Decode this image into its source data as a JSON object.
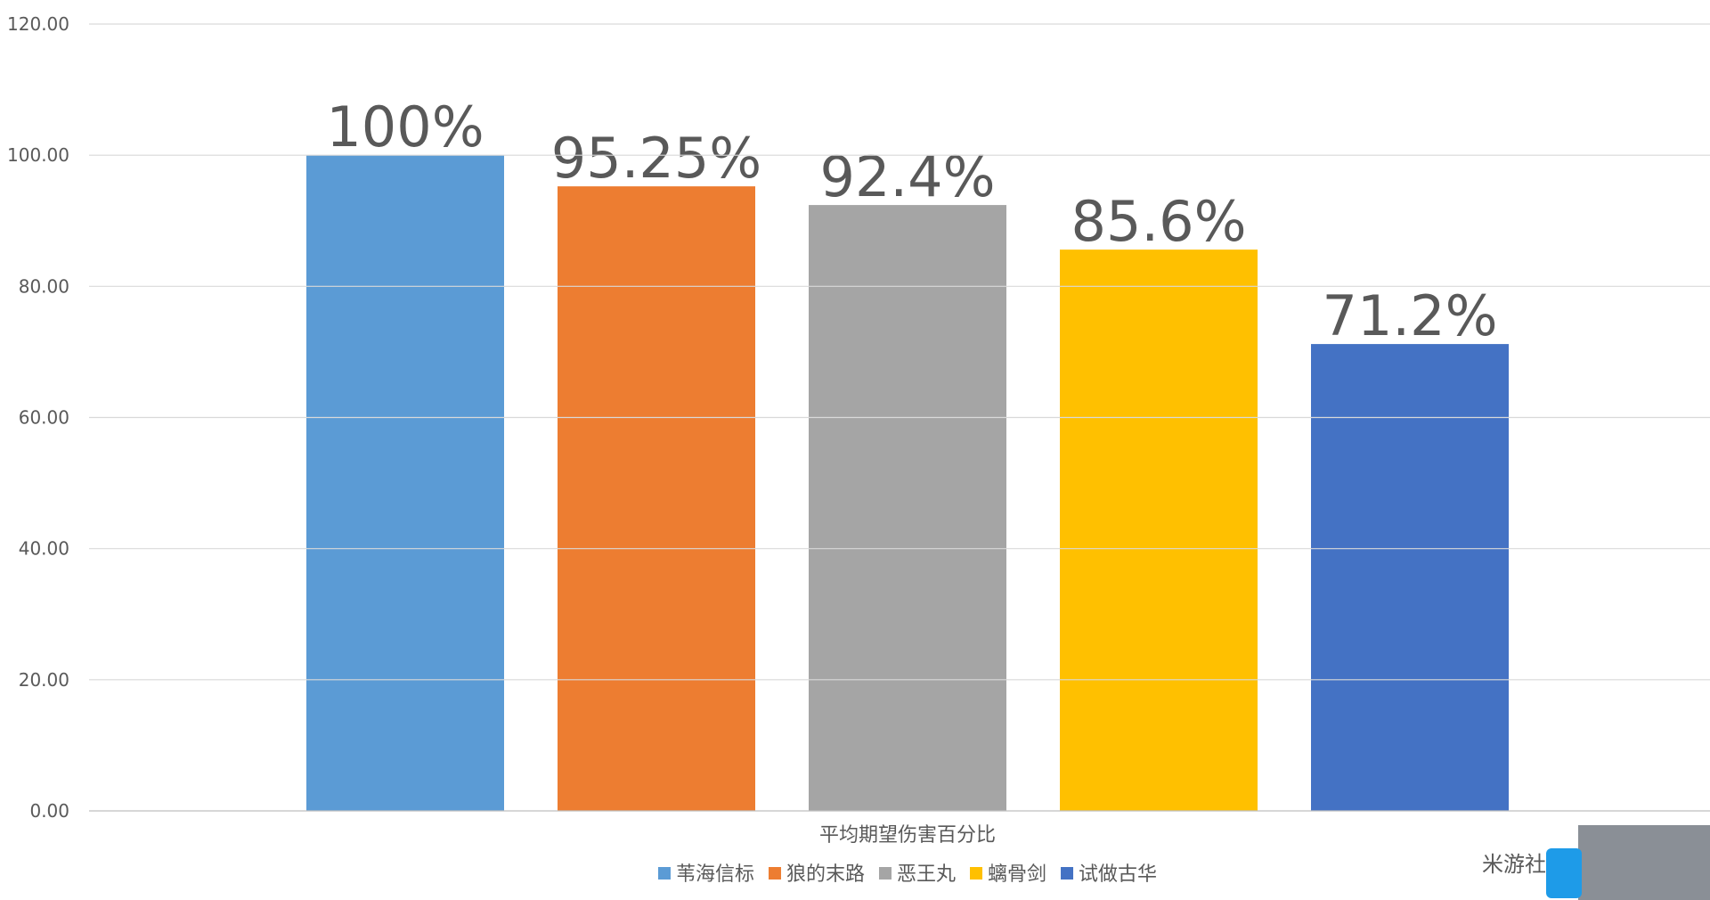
{
  "chart_data": {
    "type": "bar",
    "categories": [
      "平均期望伤害百分比"
    ],
    "series": [
      {
        "name": "苇海信标",
        "color": "#5b9bd5",
        "values": [
          100
        ],
        "value_labels": [
          "100%"
        ]
      },
      {
        "name": "狼的末路",
        "color": "#ed7d31",
        "values": [
          95.25
        ],
        "value_labels": [
          "95.25%"
        ]
      },
      {
        "name": "恶王丸",
        "color": "#a5a5a5",
        "values": [
          92.4
        ],
        "value_labels": [
          "92.4%"
        ]
      },
      {
        "name": "螭骨剑",
        "color": "#ffc000",
        "values": [
          85.6
        ],
        "value_labels": [
          "85.6%"
        ]
      },
      {
        "name": "试做古华",
        "color": "#4472c4",
        "values": [
          71.2
        ],
        "value_labels": [
          "71.2%"
        ]
      }
    ],
    "ylim": [
      0,
      120
    ],
    "yticks": [
      {
        "value": 0,
        "label": "0.00"
      },
      {
        "value": 20,
        "label": "20.00"
      },
      {
        "value": 40,
        "label": "40.00"
      },
      {
        "value": 60,
        "label": "60.00"
      },
      {
        "value": 80,
        "label": "80.00"
      },
      {
        "value": 100,
        "label": "100.00"
      },
      {
        "value": 120,
        "label": "120.00"
      }
    ],
    "grid": true,
    "legend": "bottom",
    "watermark": "米游社"
  }
}
